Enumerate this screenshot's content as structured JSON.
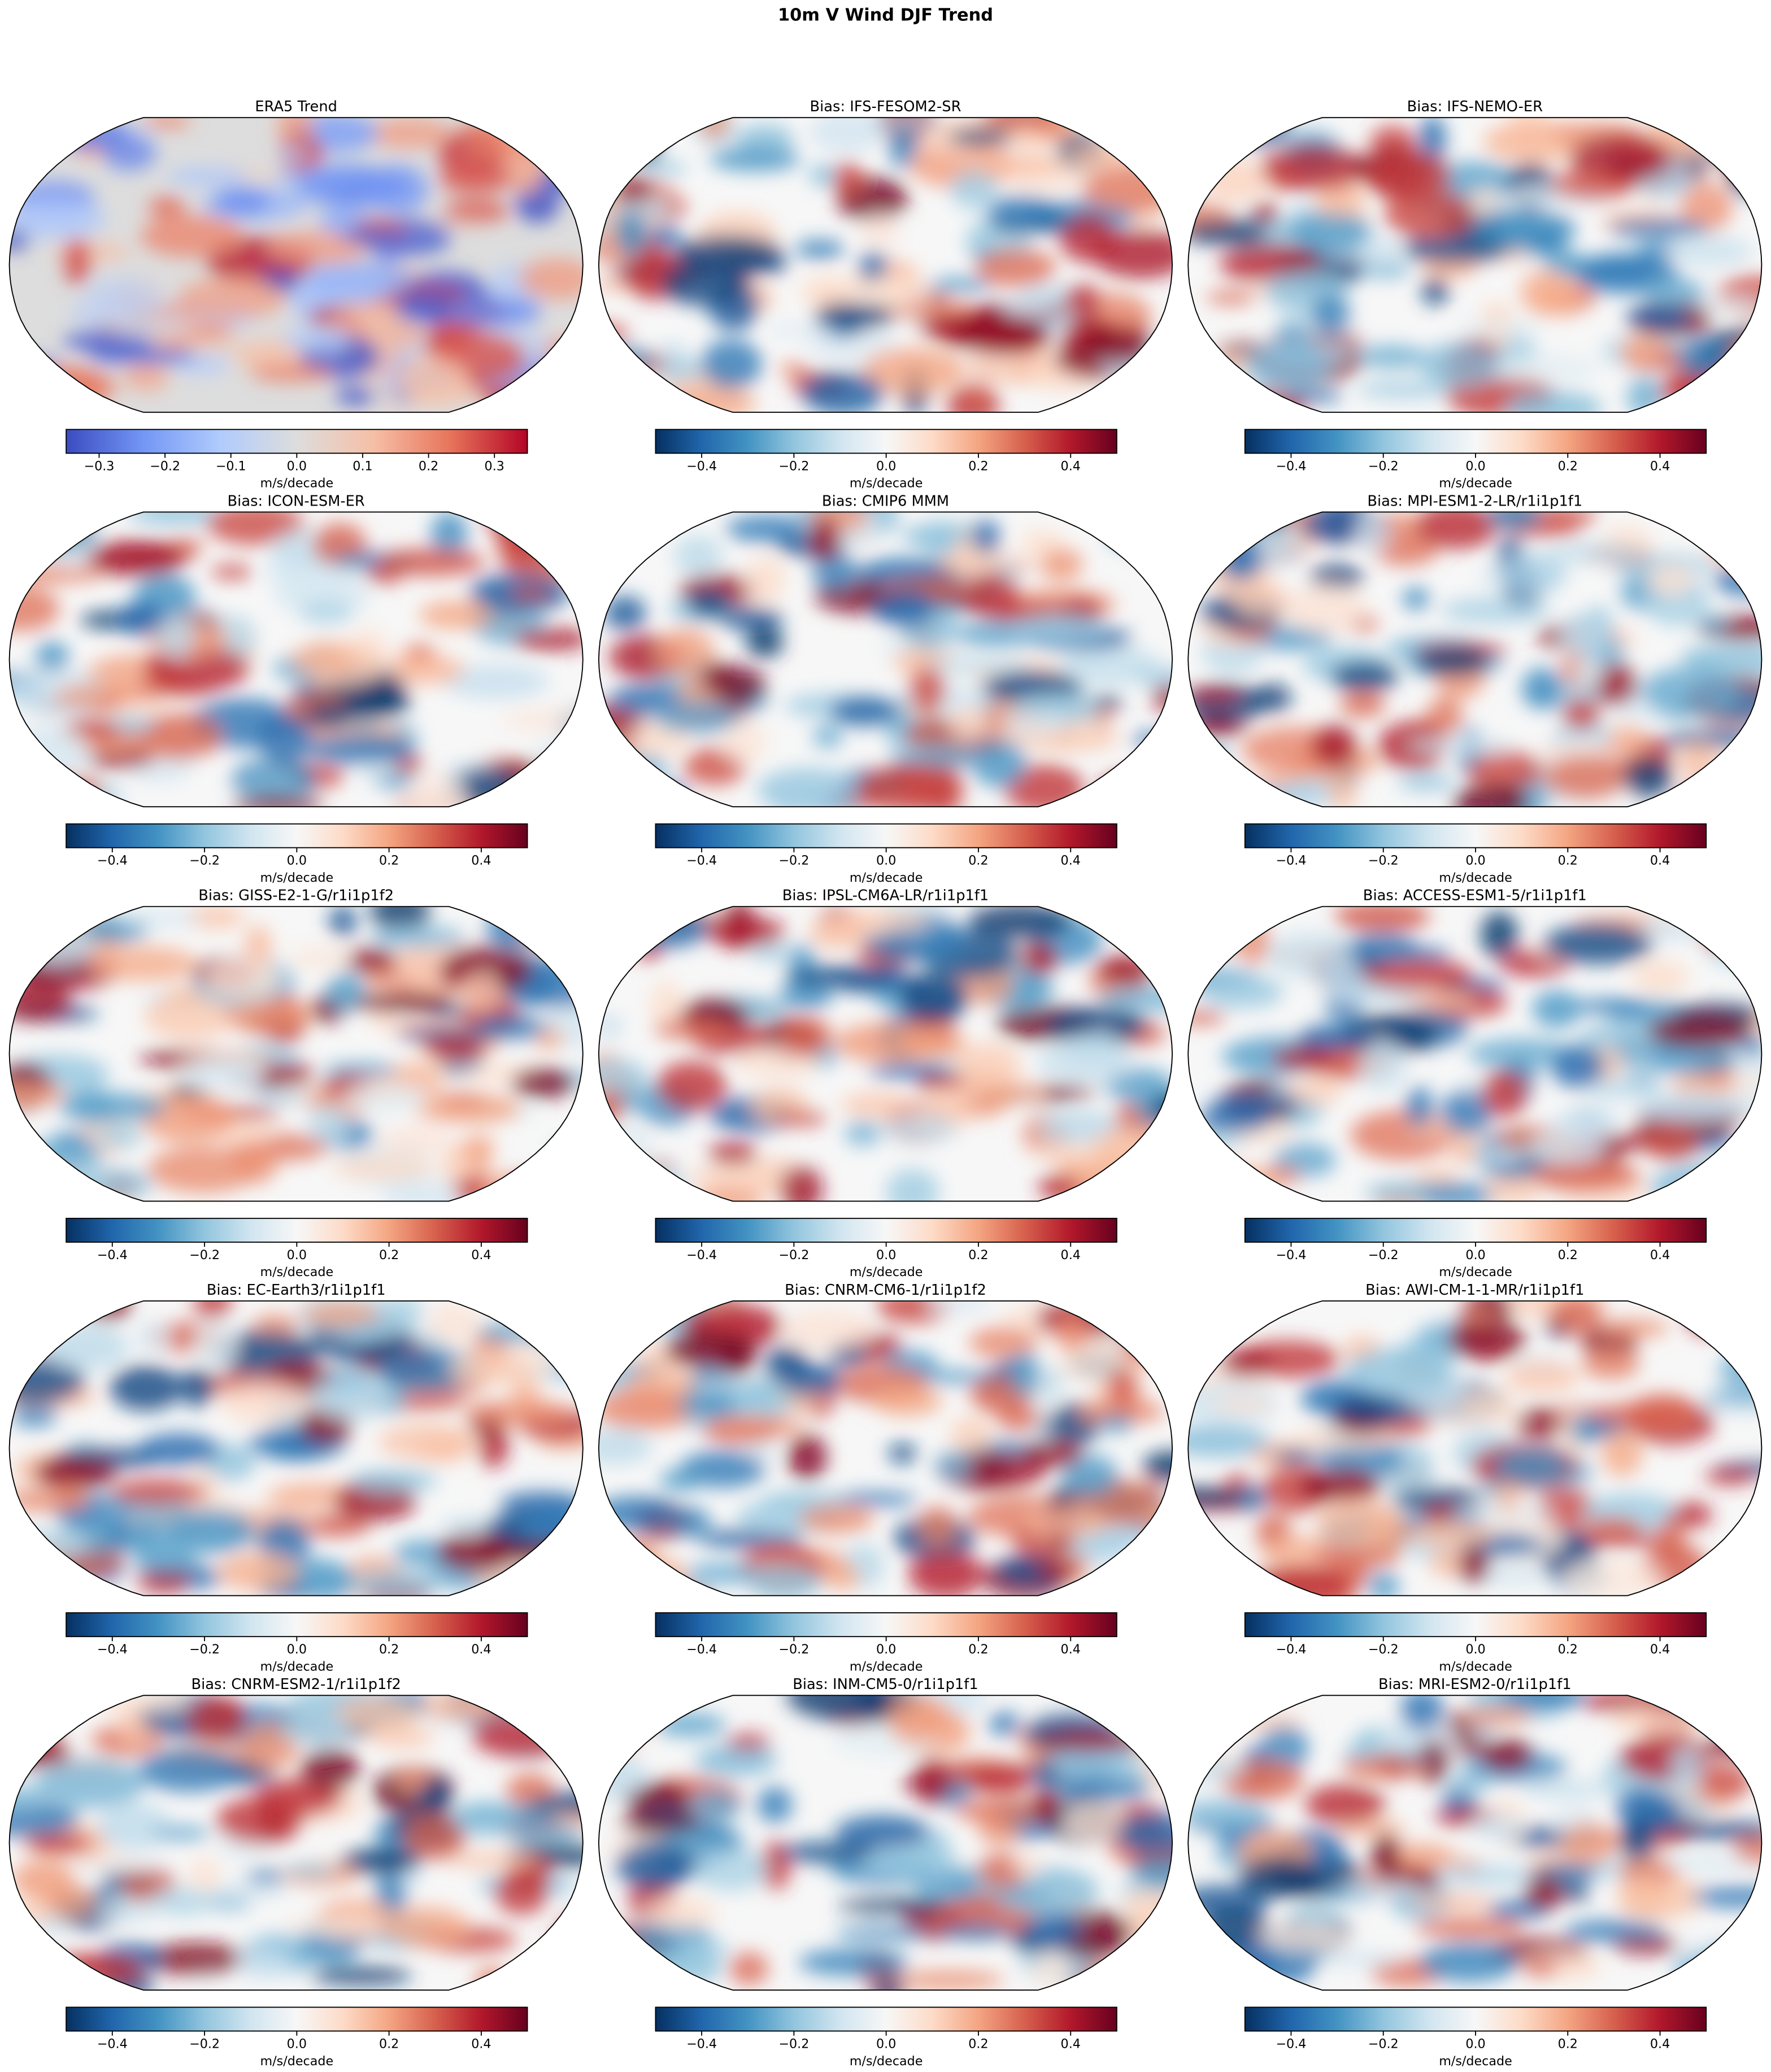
{
  "title": "10m V Wind DJF Trend",
  "colormaps": {
    "coolwarm": [
      "#3b4cc0",
      "#7396f5",
      "#b0cbfc",
      "#dddddd",
      "#f6bfa6",
      "#e7745b",
      "#b40426"
    ],
    "RdBu_r": [
      "#053061",
      "#2166ac",
      "#4393c3",
      "#92c5de",
      "#d1e5f0",
      "#f7f7f7",
      "#fddbc7",
      "#f4a582",
      "#d6604d",
      "#b2182b",
      "#67001f"
    ]
  },
  "panels": [
    {
      "title": "ERA5 Trend",
      "colorbar": {
        "label": "m/s/decade",
        "colormap": "coolwarm",
        "lim": [
          -0.35,
          0.35
        ],
        "ticks": [
          {
            "value": -0.3,
            "label": "−0.3"
          },
          {
            "value": -0.2,
            "label": "−0.2"
          },
          {
            "value": -0.1,
            "label": "−0.1"
          },
          {
            "value": 0,
            "label": "0.0"
          },
          0.1,
          0.2,
          0.3
        ]
      }
    },
    {
      "title": "Bias: IFS-FESOM2-SR",
      "colorbar": {
        "label": "m/s/decade",
        "colormap": "RdBu_r",
        "lim": [
          -0.5,
          0.5
        ],
        "ticks": [
          {
            "value": -0.4,
            "label": "−0.4"
          },
          {
            "value": -0.2,
            "label": "−0.2"
          },
          {
            "value": 0,
            "label": "0.0"
          },
          0.2,
          0.4
        ]
      }
    },
    {
      "title": "Bias: IFS-NEMO-ER",
      "colorbar": {
        "label": "m/s/decade",
        "colormap": "RdBu_r",
        "lim": [
          -0.5,
          0.5
        ],
        "ticks": [
          {
            "value": -0.4,
            "label": "−0.4"
          },
          {
            "value": -0.2,
            "label": "−0.2"
          },
          {
            "value": 0,
            "label": "0.0"
          },
          0.2,
          0.4
        ]
      }
    },
    {
      "title": "Bias: ICON-ESM-ER",
      "colorbar": {
        "label": "m/s/decade",
        "colormap": "RdBu_r",
        "lim": [
          -0.5,
          0.5
        ],
        "ticks": [
          {
            "value": -0.4,
            "label": "−0.4"
          },
          {
            "value": -0.2,
            "label": "−0.2"
          },
          {
            "value": 0,
            "label": "0.0"
          },
          0.2,
          0.4
        ]
      }
    },
    {
      "title": "Bias: CMIP6 MMM",
      "colorbar": {
        "label": "m/s/decade",
        "colormap": "RdBu_r",
        "lim": [
          -0.5,
          0.5
        ],
        "ticks": [
          {
            "value": -0.4,
            "label": "−0.4"
          },
          {
            "value": -0.2,
            "label": "−0.2"
          },
          {
            "value": 0,
            "label": "0.0"
          },
          0.2,
          0.4
        ]
      }
    },
    {
      "title": "Bias: MPI-ESM1-2-LR/r1i1p1f1",
      "colorbar": {
        "label": "m/s/decade",
        "colormap": "RdBu_r",
        "lim": [
          -0.5,
          0.5
        ],
        "ticks": [
          {
            "value": -0.4,
            "label": "−0.4"
          },
          {
            "value": -0.2,
            "label": "−0.2"
          },
          {
            "value": 0,
            "label": "0.0"
          },
          0.2,
          0.4
        ]
      }
    },
    {
      "title": "Bias: GISS-E2-1-G/r1i1p1f2",
      "colorbar": {
        "label": "m/s/decade",
        "colormap": "RdBu_r",
        "lim": [
          -0.5,
          0.5
        ],
        "ticks": [
          {
            "value": -0.4,
            "label": "−0.4"
          },
          {
            "value": -0.2,
            "label": "−0.2"
          },
          {
            "value": 0,
            "label": "0.0"
          },
          0.2,
          0.4
        ]
      }
    },
    {
      "title": "Bias: IPSL-CM6A-LR/r1i1p1f1",
      "colorbar": {
        "label": "m/s/decade",
        "colormap": "RdBu_r",
        "lim": [
          -0.5,
          0.5
        ],
        "ticks": [
          {
            "value": -0.4,
            "label": "−0.4"
          },
          {
            "value": -0.2,
            "label": "−0.2"
          },
          {
            "value": 0,
            "label": "0.0"
          },
          0.2,
          0.4
        ]
      }
    },
    {
      "title": "Bias: ACCESS-ESM1-5/r1i1p1f1",
      "colorbar": {
        "label": "m/s/decade",
        "colormap": "RdBu_r",
        "lim": [
          -0.5,
          0.5
        ],
        "ticks": [
          {
            "value": -0.4,
            "label": "−0.4"
          },
          {
            "value": -0.2,
            "label": "−0.2"
          },
          {
            "value": 0,
            "label": "0.0"
          },
          0.2,
          0.4
        ]
      }
    },
    {
      "title": "Bias: EC-Earth3/r1i1p1f1",
      "colorbar": {
        "label": "m/s/decade",
        "colormap": "RdBu_r",
        "lim": [
          -0.5,
          0.5
        ],
        "ticks": [
          {
            "value": -0.4,
            "label": "−0.4"
          },
          {
            "value": -0.2,
            "label": "−0.2"
          },
          {
            "value": 0,
            "label": "0.0"
          },
          0.2,
          0.4
        ]
      }
    },
    {
      "title": "Bias: CNRM-CM6-1/r1i1p1f2",
      "colorbar": {
        "label": "m/s/decade",
        "colormap": "RdBu_r",
        "lim": [
          -0.5,
          0.5
        ],
        "ticks": [
          {
            "value": -0.4,
            "label": "−0.4"
          },
          {
            "value": -0.2,
            "label": "−0.2"
          },
          {
            "value": 0,
            "label": "0.0"
          },
          0.2,
          0.4
        ]
      }
    },
    {
      "title": "Bias: AWI-CM-1-1-MR/r1i1p1f1",
      "colorbar": {
        "label": "m/s/decade",
        "colormap": "RdBu_r",
        "lim": [
          -0.5,
          0.5
        ],
        "ticks": [
          {
            "value": -0.4,
            "label": "−0.4"
          },
          {
            "value": -0.2,
            "label": "−0.2"
          },
          {
            "value": 0,
            "label": "0.0"
          },
          0.2,
          0.4
        ]
      }
    },
    {
      "title": "Bias: CNRM-ESM2-1/r1i1p1f2",
      "colorbar": {
        "label": "m/s/decade",
        "colormap": "RdBu_r",
        "lim": [
          -0.5,
          0.5
        ],
        "ticks": [
          {
            "value": -0.4,
            "label": "−0.4"
          },
          {
            "value": -0.2,
            "label": "−0.2"
          },
          {
            "value": 0,
            "label": "0.0"
          },
          0.2,
          0.4
        ]
      }
    },
    {
      "title": "Bias: INM-CM5-0/r1i1p1f1",
      "colorbar": {
        "label": "m/s/decade",
        "colormap": "RdBu_r",
        "lim": [
          -0.5,
          0.5
        ],
        "ticks": [
          {
            "value": -0.4,
            "label": "−0.4"
          },
          {
            "value": -0.2,
            "label": "−0.2"
          },
          {
            "value": 0,
            "label": "0.0"
          },
          0.2,
          0.4
        ]
      }
    },
    {
      "title": "Bias: MRI-ESM2-0/r1i1p1f1",
      "colorbar": {
        "label": "m/s/decade",
        "colormap": "RdBu_r",
        "lim": [
          -0.5,
          0.5
        ],
        "ticks": [
          {
            "value": -0.4,
            "label": "−0.4"
          },
          {
            "value": -0.2,
            "label": "−0.2"
          },
          {
            "value": 0,
            "label": "0.0"
          },
          0.2,
          0.4
        ]
      }
    }
  ]
}
